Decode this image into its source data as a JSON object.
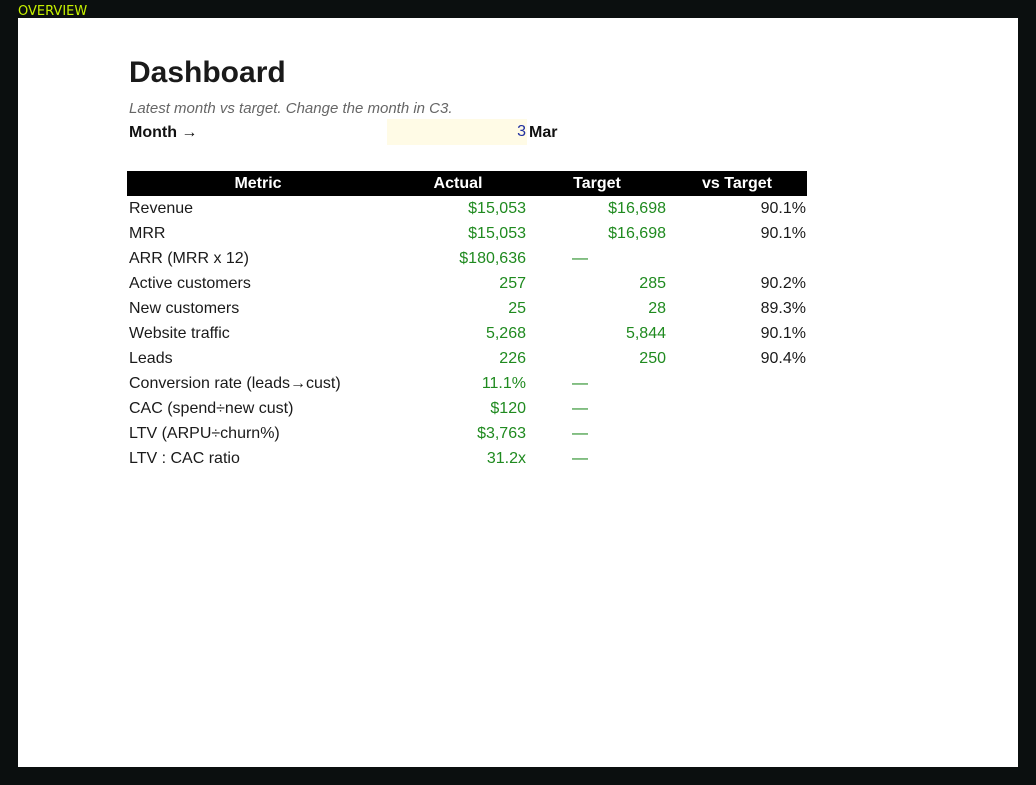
{
  "sheet": {
    "tab_label": "OVERVIEW"
  },
  "dashboard": {
    "title": "Dashboard",
    "subtitle": "Latest month vs target. Change the month in C3.",
    "month_label": "Month →",
    "month_value": "3",
    "month_name": "Mar"
  },
  "table": {
    "headers": [
      "Metric",
      "Actual",
      "Target",
      "vs Target"
    ],
    "rows": [
      {
        "metric": "Revenue",
        "actual": "$15,053",
        "target": "$16,698",
        "vs": "90.1%"
      },
      {
        "metric": "MRR",
        "actual": "$15,053",
        "target": "$16,698",
        "vs": "90.1%"
      },
      {
        "metric": "ARR (MRR x 12)",
        "actual": "$180,636",
        "target": "—",
        "vs": ""
      },
      {
        "metric": "Active customers",
        "actual": "257",
        "target": "285",
        "vs": "90.2%"
      },
      {
        "metric": "New customers",
        "actual": "25",
        "target": "28",
        "vs": "89.3%"
      },
      {
        "metric": "Website traffic",
        "actual": "5,268",
        "target": "5,844",
        "vs": "90.1%"
      },
      {
        "metric": "Leads",
        "actual": "226",
        "target": "250",
        "vs": "90.4%"
      },
      {
        "metric": "Conversion rate (leads→cust)",
        "actual": "11.1%",
        "target": "—",
        "vs": ""
      },
      {
        "metric": "CAC (spend÷new cust)",
        "actual": "$120",
        "target": "—",
        "vs": ""
      },
      {
        "metric": "LTV (ARPU÷churn%)",
        "actual": "$3,763",
        "target": "—",
        "vs": ""
      },
      {
        "metric": "LTV : CAC ratio",
        "actual": "31.2x",
        "target": "—",
        "vs": ""
      }
    ]
  },
  "colors": {
    "frame_background": "#0b0f0f",
    "tab_label": "#c6f000",
    "header_background": "#000000",
    "header_text": "#ffffff",
    "value_green": "#1f8a1f",
    "input_fill": "#fffbe6",
    "input_text": "#1f2fa0"
  }
}
